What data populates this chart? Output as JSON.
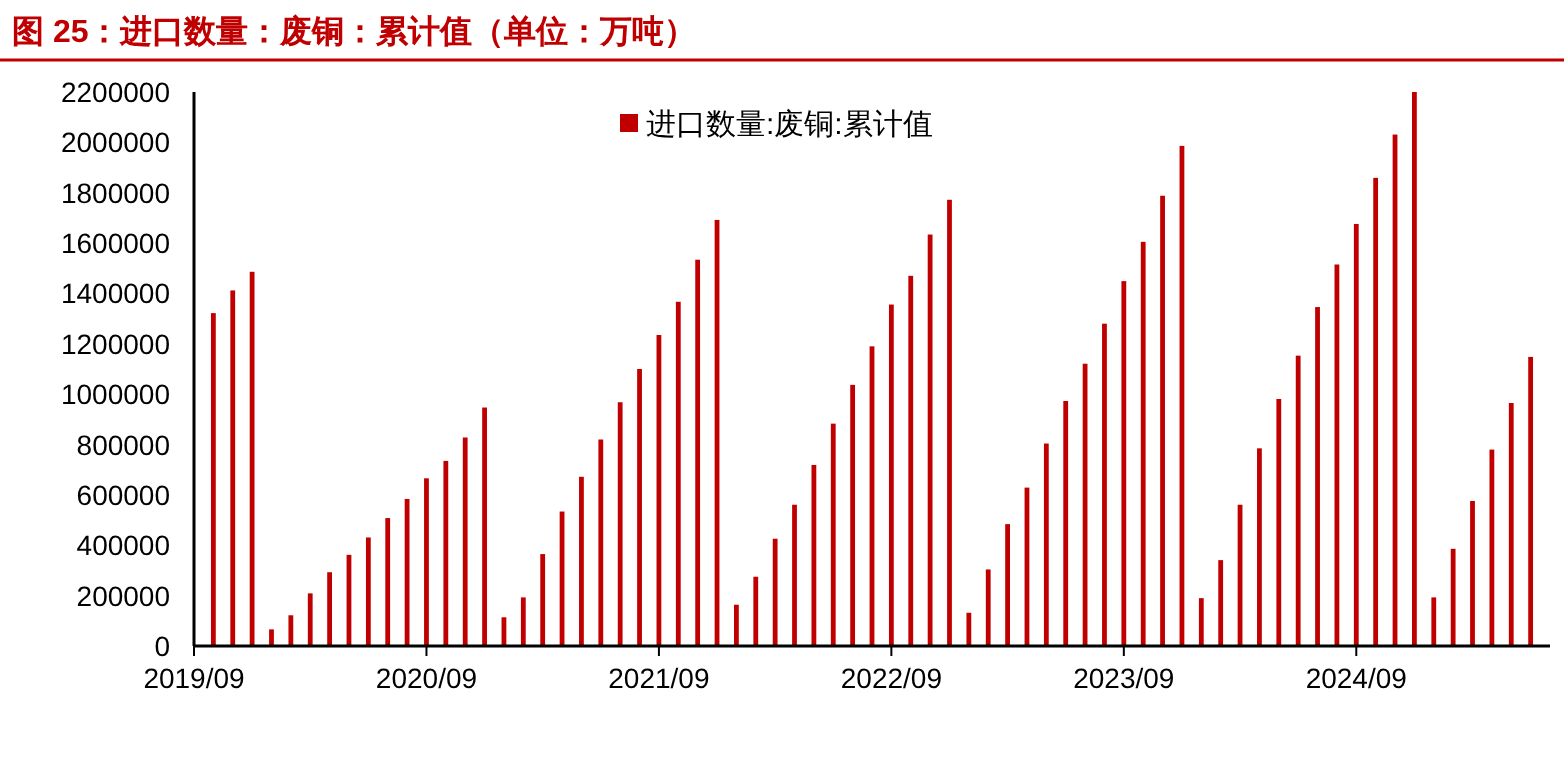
{
  "chart_data": {
    "type": "bar",
    "title": "图 25：进口数量：废铜：累计值（单位：万吨）",
    "x": [
      "2019-10",
      "2019-11",
      "2019-12",
      "2020-01",
      "2020-02",
      "2020-03",
      "2020-04",
      "2020-05",
      "2020-06",
      "2020-07",
      "2020-08",
      "2020-09",
      "2020-10",
      "2020-11",
      "2020-12",
      "2021-01",
      "2021-02",
      "2021-03",
      "2021-04",
      "2021-05",
      "2021-06",
      "2021-07",
      "2021-08",
      "2021-09",
      "2021-10",
      "2021-11",
      "2021-12",
      "2022-01",
      "2022-02",
      "2022-03",
      "2022-04",
      "2022-05",
      "2022-06",
      "2022-07",
      "2022-08",
      "2022-09",
      "2022-10",
      "2022-11",
      "2022-12",
      "2023-01",
      "2023-02",
      "2023-03",
      "2023-04",
      "2023-05",
      "2023-06",
      "2023-07",
      "2023-08",
      "2023-09",
      "2023-10",
      "2023-11",
      "2023-12",
      "2024-01",
      "2024-02",
      "2024-03",
      "2024-04",
      "2024-05",
      "2024-06",
      "2024-07",
      "2024-08",
      "2024-09",
      "2024-10",
      "2024-11",
      "2024-12",
      "2025-01",
      "2025-02",
      "2025-03",
      "2025-04",
      "2025-05",
      "2025-06"
    ],
    "series": [
      {
        "name": "进口数量:废铜:累计值",
        "color": "#c00000",
        "values": [
          1322000,
          1412000,
          1486000,
          66000,
          122000,
          209000,
          293000,
          362000,
          431000,
          508000,
          584000,
          666000,
          735000,
          828000,
          947000,
          114000,
          193000,
          365000,
          534000,
          672000,
          820000,
          968000,
          1100000,
          1235000,
          1367000,
          1534000,
          1692000,
          164000,
          275000,
          426000,
          561000,
          719000,
          883000,
          1037000,
          1190000,
          1356000,
          1470000,
          1634000,
          1772000,
          132000,
          304000,
          484000,
          629000,
          804000,
          973000,
          1121000,
          1280000,
          1449000,
          1605000,
          1788000,
          1986000,
          190000,
          341000,
          561000,
          785000,
          981000,
          1153000,
          1346000,
          1515000,
          1676000,
          1859000,
          2031000,
          2200000,
          193000,
          386000,
          576000,
          780000,
          965000,
          1148000
        ]
      }
    ],
    "xlim": [
      "2019-09",
      "2025-07"
    ],
    "xticks": [
      {
        "value": "2019-09",
        "label": "2019/09"
      },
      {
        "value": "2020-09",
        "label": "2020/09"
      },
      {
        "value": "2021-09",
        "label": "2021/09"
      },
      {
        "value": "2022-09",
        "label": "2022/09"
      },
      {
        "value": "2023-09",
        "label": "2023/09"
      },
      {
        "value": "2024-09",
        "label": "2024/09"
      }
    ],
    "ylim": [
      0,
      2200000
    ],
    "yticks": [
      0,
      200000,
      400000,
      600000,
      800000,
      1000000,
      1200000,
      1400000,
      1600000,
      1800000,
      2000000,
      2200000
    ],
    "legend": "top"
  }
}
